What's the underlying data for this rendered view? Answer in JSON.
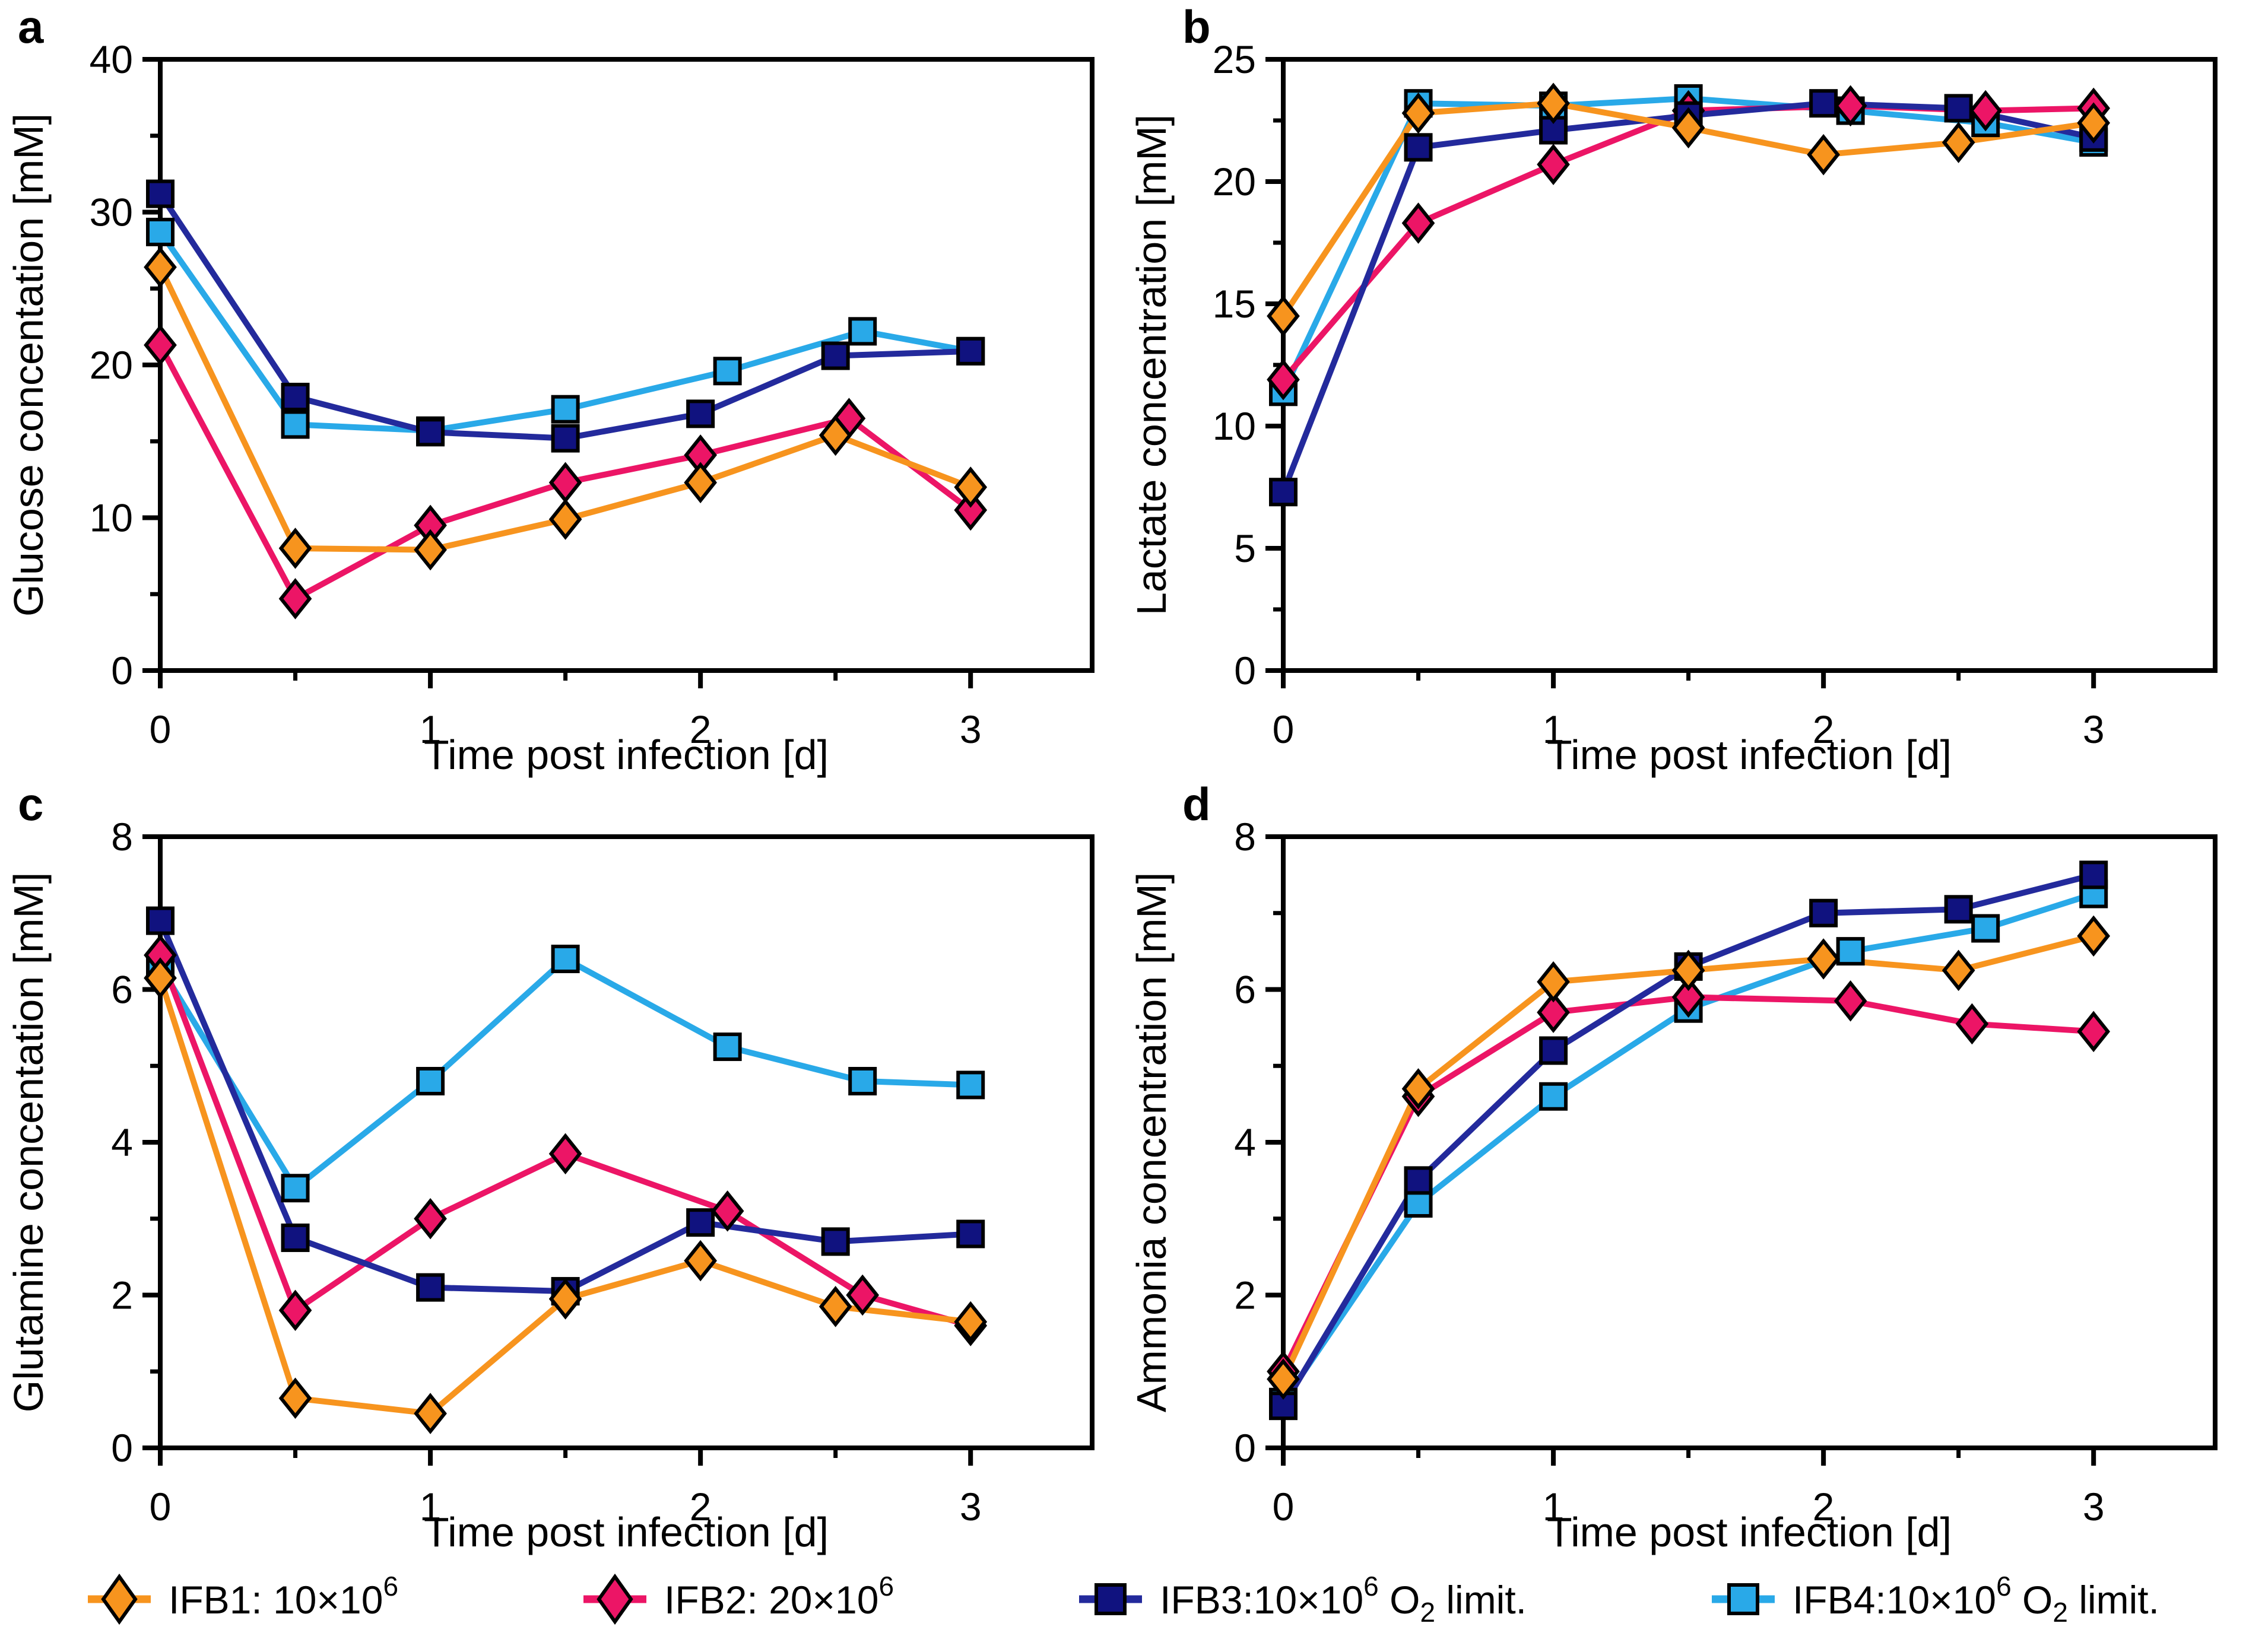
{
  "series": [
    {
      "id": "IFB1",
      "marker": "diamond",
      "color": "#F7941E",
      "fill": "#F7941E"
    },
    {
      "id": "IFB2",
      "marker": "diamond",
      "color": "#EC1566",
      "fill": "#EC1566"
    },
    {
      "id": "IFB3",
      "marker": "square",
      "color": "#232A9C",
      "fill": "#10127F"
    },
    {
      "id": "IFB4",
      "marker": "square",
      "color": "#29A9E8",
      "fill": "#29A9E8"
    }
  ],
  "chart_data": [
    {
      "type": "line",
      "panel_letter": "a",
      "ylabel": "Glucose concentation [mM]",
      "xlabel": "Time post infection [d]",
      "ylim": [
        0,
        40
      ],
      "yticks": [
        0,
        10,
        20,
        30,
        40
      ],
      "yminor": [
        5,
        15,
        25,
        35
      ],
      "xlim": [
        0,
        3.45
      ],
      "xticks": [
        0,
        1,
        2,
        3
      ],
      "xminor": [
        0.5,
        1.5,
        2.5
      ],
      "grid": false,
      "series": [
        {
          "series": "IFB1",
          "x": [
            0,
            0.5,
            1,
            1.5,
            2,
            2.5,
            3
          ],
          "y": [
            26.4,
            8.0,
            7.9,
            9.9,
            12.3,
            15.4,
            12.0
          ]
        },
        {
          "series": "IFB2",
          "x": [
            0,
            0.5,
            1,
            1.5,
            2,
            2.55,
            3
          ],
          "y": [
            21.3,
            4.7,
            9.5,
            12.3,
            14.1,
            16.5,
            10.5
          ]
        },
        {
          "series": "IFB3",
          "x": [
            0,
            0.5,
            1,
            1.5,
            2,
            2.5,
            3
          ],
          "y": [
            31.2,
            17.9,
            15.6,
            15.2,
            16.8,
            20.6,
            20.9
          ]
        },
        {
          "series": "IFB4",
          "x": [
            0,
            0.5,
            1,
            1.5,
            2.1,
            2.6,
            3
          ],
          "y": [
            28.7,
            16.1,
            15.7,
            17.1,
            19.6,
            22.2,
            20.9
          ]
        }
      ]
    },
    {
      "type": "line",
      "panel_letter": "b",
      "ylabel": "Lactate concentration [mM]",
      "xlabel": "Time post infection [d]",
      "ylim": [
        0,
        25
      ],
      "yticks": [
        0,
        5,
        10,
        15,
        20,
        25
      ],
      "yminor": [
        2.5,
        7.5,
        12.5,
        17.5,
        22.5
      ],
      "xlim": [
        0,
        3.45
      ],
      "xticks": [
        0,
        1,
        2,
        3
      ],
      "xminor": [
        0.5,
        1.5,
        2.5
      ],
      "grid": false,
      "series": [
        {
          "series": "IFB1",
          "x": [
            0,
            0.5,
            1,
            1.5,
            2,
            2.5,
            3
          ],
          "y": [
            14.5,
            22.8,
            23.2,
            22.2,
            21.1,
            21.6,
            22.4
          ]
        },
        {
          "series": "IFB2",
          "x": [
            0,
            0.5,
            1,
            1.5,
            2.1,
            2.6,
            3
          ],
          "y": [
            11.9,
            18.3,
            20.7,
            22.9,
            23.1,
            22.9,
            23.0
          ]
        },
        {
          "series": "IFB3",
          "x": [
            0,
            0.5,
            1,
            1.5,
            2,
            2.5,
            3
          ],
          "y": [
            7.3,
            21.4,
            22.1,
            22.7,
            23.2,
            23.0,
            21.8
          ]
        },
        {
          "series": "IFB4",
          "x": [
            0,
            0.5,
            1,
            1.5,
            2.1,
            2.6,
            3
          ],
          "y": [
            11.4,
            23.2,
            23.1,
            23.4,
            22.9,
            22.4,
            21.6
          ]
        }
      ]
    },
    {
      "type": "line",
      "panel_letter": "c",
      "ylabel": "Glutamine concentation [mM]",
      "xlabel": "Time post infection [d]",
      "ylim": [
        0,
        8
      ],
      "yticks": [
        0,
        2,
        4,
        6,
        8
      ],
      "yminor": [
        1,
        3,
        5,
        7
      ],
      "xlim": [
        0,
        3.45
      ],
      "xticks": [
        0,
        1,
        2,
        3
      ],
      "xminor": [
        0.5,
        1.5,
        2.5
      ],
      "grid": false,
      "series": [
        {
          "series": "IFB1",
          "x": [
            0,
            0.5,
            1,
            1.5,
            2,
            2.5,
            3
          ],
          "y": [
            6.15,
            0.65,
            0.45,
            1.95,
            2.45,
            1.85,
            1.65
          ]
        },
        {
          "series": "IFB2",
          "x": [
            0,
            0.5,
            1,
            1.5,
            2.1,
            2.6,
            3
          ],
          "y": [
            6.45,
            1.8,
            3.0,
            3.85,
            3.1,
            2.0,
            1.6
          ]
        },
        {
          "series": "IFB3",
          "x": [
            0,
            0.5,
            1,
            1.5,
            2,
            2.5,
            3
          ],
          "y": [
            6.9,
            2.75,
            2.1,
            2.05,
            2.95,
            2.7,
            2.8
          ]
        },
        {
          "series": "IFB4",
          "x": [
            0,
            0.5,
            1,
            1.5,
            2.1,
            2.6,
            3
          ],
          "y": [
            6.3,
            3.4,
            4.8,
            6.4,
            5.25,
            4.8,
            4.75
          ]
        }
      ]
    },
    {
      "type": "line",
      "panel_letter": "d",
      "ylabel": "Ammonia concentration [mM]",
      "xlabel": "Time post infection [d]",
      "ylim": [
        0,
        8
      ],
      "yticks": [
        0,
        2,
        4,
        6,
        8
      ],
      "yminor": [
        1,
        3,
        5,
        7
      ],
      "xlim": [
        0,
        3.45
      ],
      "xticks": [
        0,
        1,
        2,
        3
      ],
      "xminor": [
        0.5,
        1.5,
        2.5
      ],
      "grid": false,
      "series": [
        {
          "series": "IFB1",
          "x": [
            0,
            0.5,
            1,
            1.5,
            2,
            2.5,
            3
          ],
          "y": [
            0.9,
            4.7,
            6.1,
            6.25,
            6.4,
            6.25,
            6.7
          ]
        },
        {
          "series": "IFB2",
          "x": [
            0,
            0.5,
            1,
            1.5,
            2.1,
            2.55,
            3
          ],
          "y": [
            1.0,
            4.6,
            5.7,
            5.9,
            5.85,
            5.55,
            5.45
          ]
        },
        {
          "series": "IFB3",
          "x": [
            0,
            0.5,
            1,
            1.5,
            2,
            2.5,
            3
          ],
          "y": [
            0.55,
            3.5,
            5.2,
            6.3,
            7.0,
            7.05,
            7.5
          ]
        },
        {
          "series": "IFB4",
          "x": [
            0,
            0.5,
            1,
            1.5,
            2.1,
            2.6,
            3
          ],
          "y": [
            0.6,
            3.2,
            4.6,
            5.75,
            6.5,
            6.8,
            7.25
          ]
        }
      ]
    }
  ],
  "legend": {
    "items": [
      {
        "series": "IFB1",
        "prefix": "IFB1: 10×10",
        "sup": "6",
        "mid": "",
        "sub": "",
        "suffix": ""
      },
      {
        "series": "IFB2",
        "prefix": "IFB2: 20×10",
        "sup": "6",
        "mid": "",
        "sub": "",
        "suffix": ""
      },
      {
        "series": "IFB3",
        "prefix": "IFB3:10×10",
        "sup": "6",
        "mid": " O",
        "sub": "2",
        "suffix": " limit."
      },
      {
        "series": "IFB4",
        "prefix": "IFB4:10×10",
        "sup": "6",
        "mid": " O",
        "sub": "2",
        "suffix": " limit."
      }
    ]
  }
}
